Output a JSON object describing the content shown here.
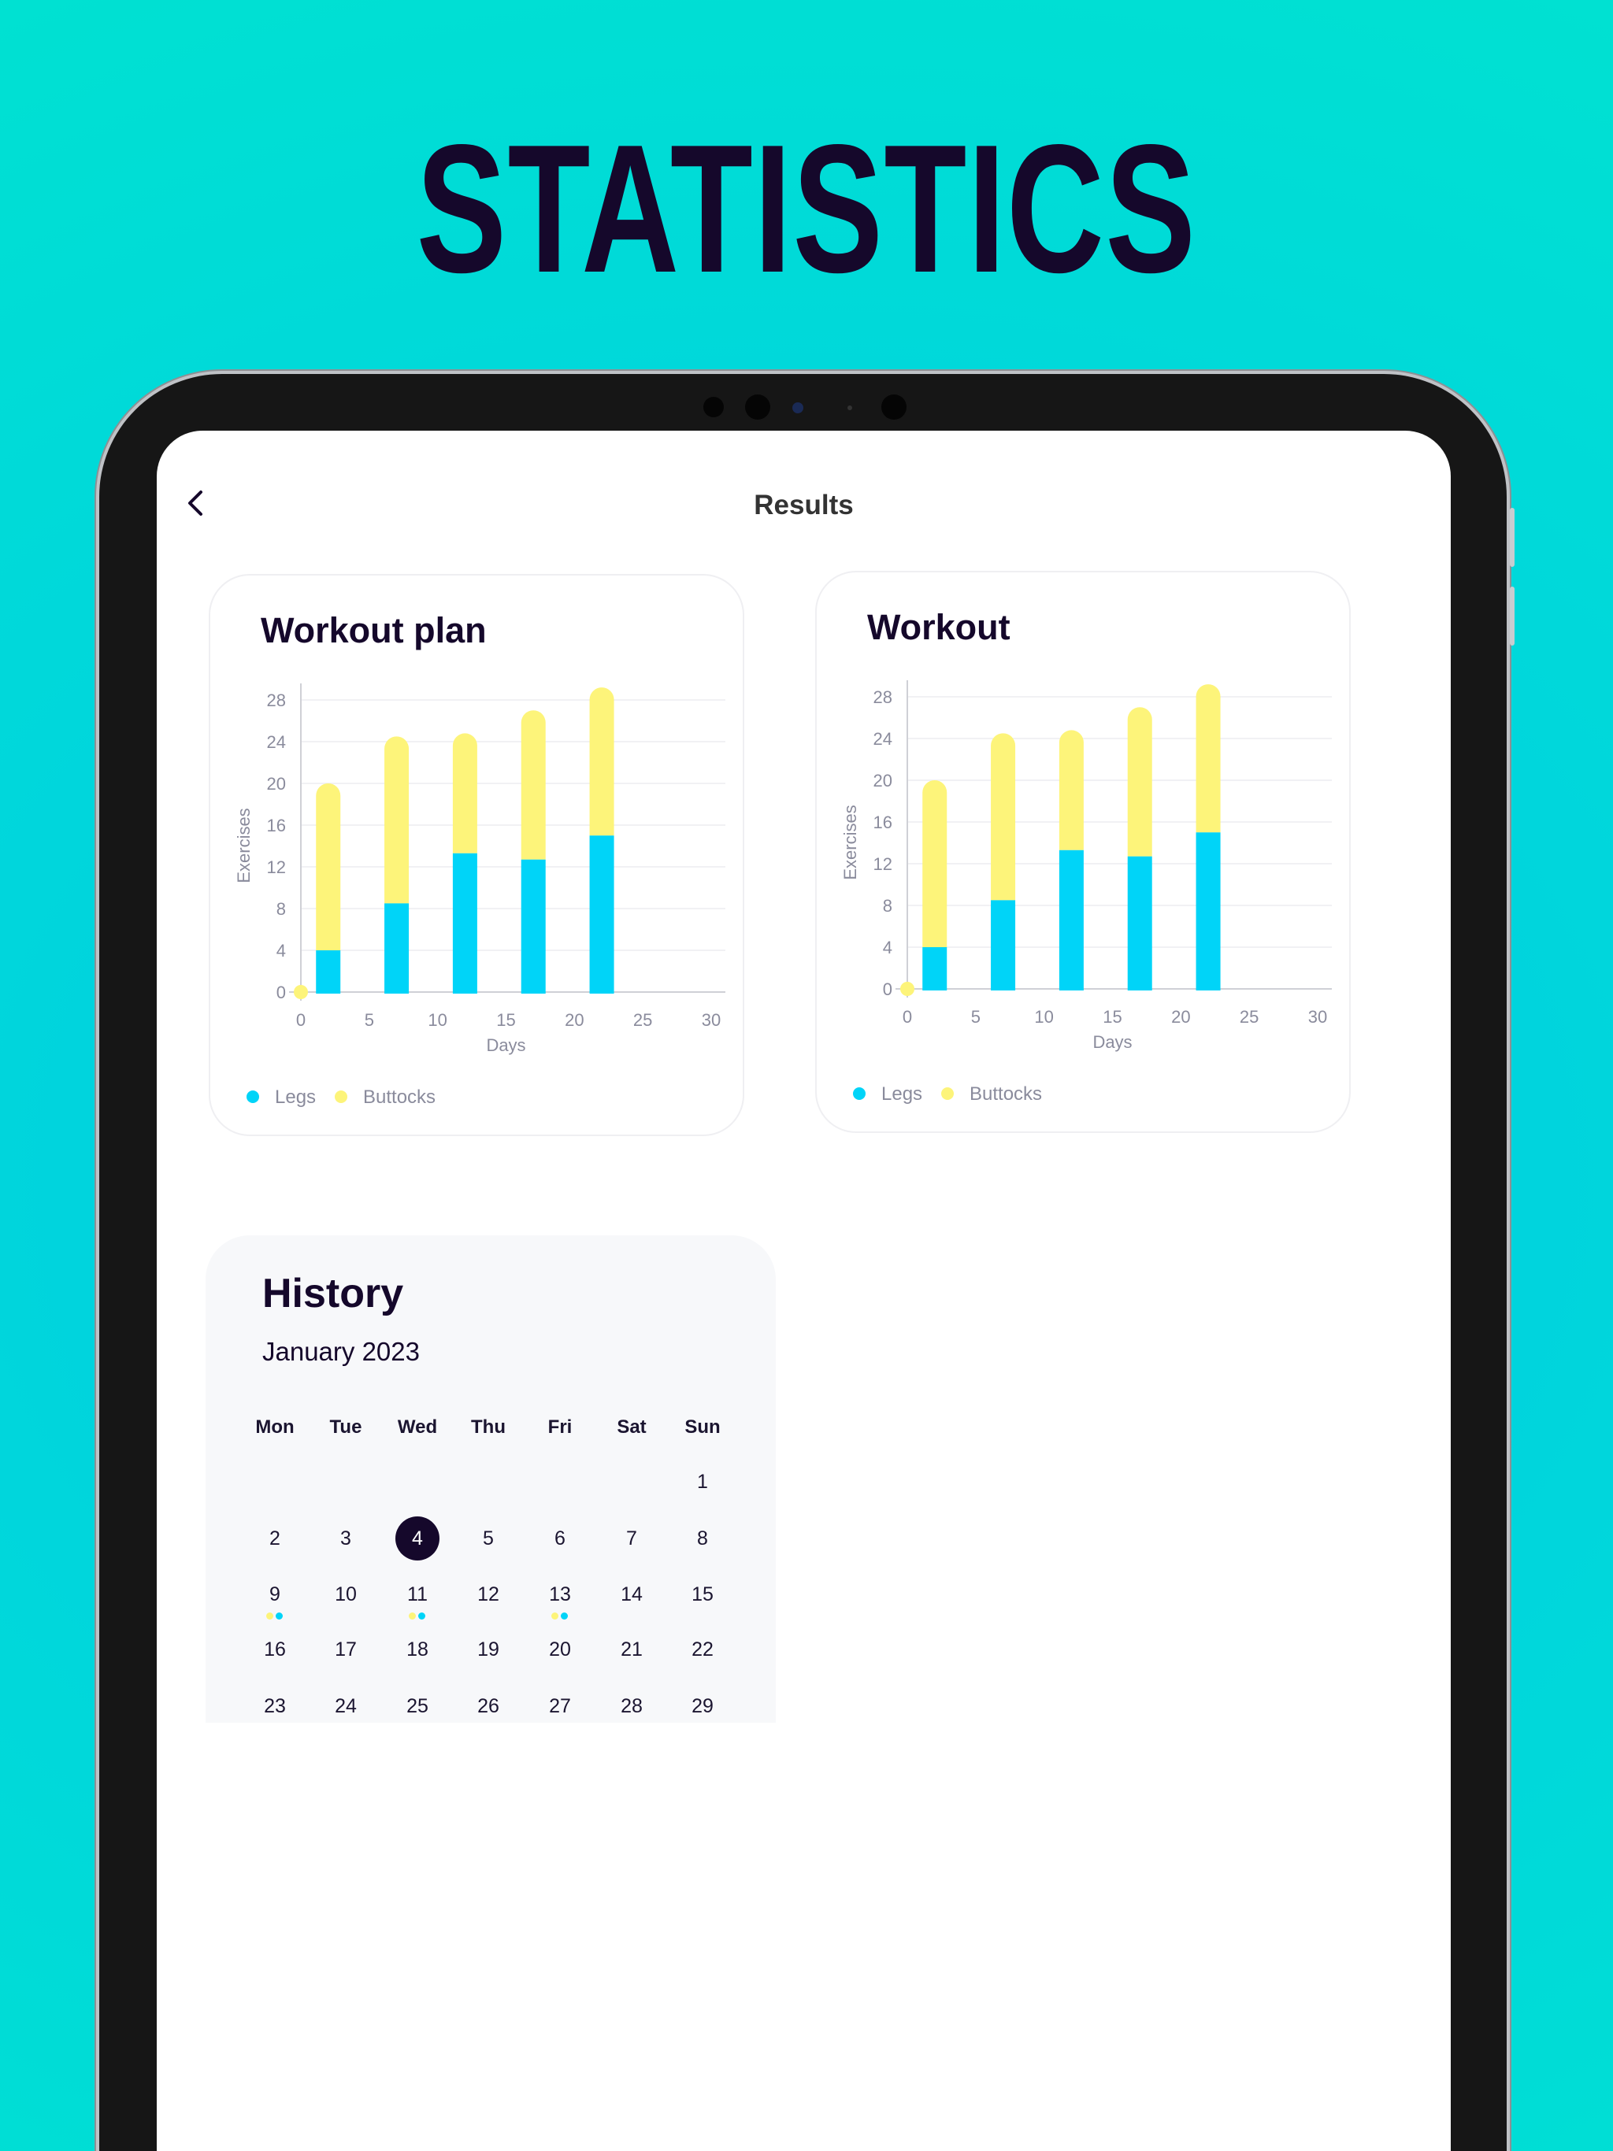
{
  "headline": "STATISTICS",
  "header": {
    "title": "Results",
    "back_icon": "chevron-left-icon"
  },
  "colors": {
    "legs": "#00d4f8",
    "buttocks": "#fdf47a",
    "text_dark": "#15082b",
    "axis_text": "#8a8b9c"
  },
  "cards": [
    {
      "title": "Workout plan"
    },
    {
      "title": "Workout"
    }
  ],
  "chart_data": [
    {
      "type": "bar",
      "stacked": true,
      "title": "Workout plan",
      "xlabel": "Days",
      "ylabel": "Exercises",
      "xlim": [
        0,
        30
      ],
      "ylim": [
        0,
        28
      ],
      "xticks": [
        "0",
        "5",
        "10",
        "15",
        "20",
        "25",
        "30"
      ],
      "yticks": [
        "0",
        "4",
        "8",
        "12",
        "16",
        "20",
        "24",
        "28"
      ],
      "grid": "horizontal",
      "legend": "bottom-left",
      "x": [
        2,
        7,
        12,
        17,
        22
      ],
      "series": [
        {
          "name": "Legs",
          "values": [
            4,
            8.5,
            13.3,
            12.7,
            15
          ]
        },
        {
          "name": "Buttocks",
          "values": [
            16,
            16,
            11.5,
            14.3,
            14.2
          ]
        }
      ]
    },
    {
      "type": "bar",
      "stacked": true,
      "title": "Workout",
      "xlabel": "Days",
      "ylabel": "Exercises",
      "xlim": [
        0,
        30
      ],
      "ylim": [
        0,
        28
      ],
      "xticks": [
        "0",
        "5",
        "10",
        "15",
        "20",
        "25",
        "30"
      ],
      "yticks": [
        "0",
        "4",
        "8",
        "12",
        "16",
        "20",
        "24",
        "28"
      ],
      "grid": "horizontal",
      "legend": "bottom-left",
      "x": [
        2,
        7,
        12,
        17,
        22
      ],
      "series": [
        {
          "name": "Legs",
          "values": [
            4,
            8.5,
            13.3,
            12.7,
            15
          ]
        },
        {
          "name": "Buttocks",
          "values": [
            16,
            16,
            11.5,
            14.3,
            14.2
          ]
        }
      ]
    }
  ],
  "history": {
    "title": "History",
    "month": "January 2023",
    "weekdays": [
      "Mon",
      "Tue",
      "Wed",
      "Thu",
      "Fri",
      "Sat",
      "Sun"
    ],
    "weeks": [
      [
        "",
        "",
        "",
        "",
        "",
        "",
        "1"
      ],
      [
        "2",
        "3",
        "4",
        "5",
        "6",
        "7",
        "8"
      ],
      [
        "9",
        "10",
        "11",
        "12",
        "13",
        "14",
        "15"
      ],
      [
        "16",
        "17",
        "18",
        "19",
        "20",
        "21",
        "22"
      ],
      [
        "23",
        "24",
        "25",
        "26",
        "27",
        "28",
        "29"
      ]
    ],
    "selected_day": "4",
    "days_with_activity": [
      "9",
      "11",
      "13"
    ]
  }
}
